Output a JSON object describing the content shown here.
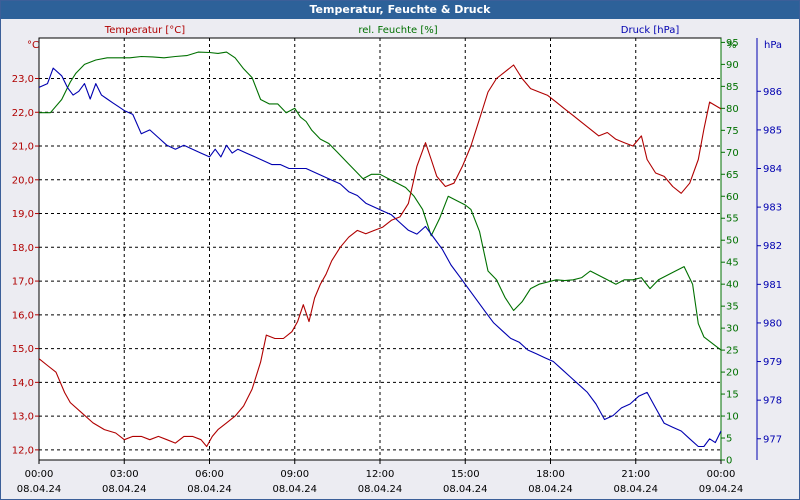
{
  "window": {
    "title": "Temperatur, Feuchte & Druck"
  },
  "chart_data": {
    "type": "line",
    "title": "Temperatur, Feuchte & Druck",
    "grid": true,
    "colors": {
      "temperature": "#b00000",
      "humidity": "#007000",
      "pressure": "#0000b0",
      "grid": "#000000",
      "plot_bg": "#ffffff"
    },
    "x_axis": {
      "range_hours": [
        0,
        24
      ],
      "ticks": [
        {
          "hour": 0,
          "time": "00:00",
          "date": "08.04.24"
        },
        {
          "hour": 3,
          "time": "03:00",
          "date": "08.04.24"
        },
        {
          "hour": 6,
          "time": "06:00",
          "date": "08.04.24"
        },
        {
          "hour": 9,
          "time": "09:00",
          "date": "08.04.24"
        },
        {
          "hour": 12,
          "time": "12:00",
          "date": "08.04.24"
        },
        {
          "hour": 15,
          "time": "15:00",
          "date": "08.04.24"
        },
        {
          "hour": 18,
          "time": "18:00",
          "date": "08.04.24"
        },
        {
          "hour": 21,
          "time": "21:00",
          "date": "08.04.24"
        },
        {
          "hour": 24,
          "time": "00:00",
          "date": "09.04.24"
        }
      ]
    },
    "axes": {
      "temperature": {
        "unit": "°C",
        "range": [
          11.7,
          24.2
        ],
        "ticks": [
          12.0,
          13.0,
          14.0,
          15.0,
          16.0,
          17.0,
          18.0,
          19.0,
          20.0,
          21.0,
          22.0,
          23.0
        ],
        "tick_labels": [
          "12,0",
          "13,0",
          "14,0",
          "15,0",
          "16,0",
          "17,0",
          "18,0",
          "19,0",
          "20,0",
          "21,0",
          "22,0",
          "23,0"
        ]
      },
      "humidity": {
        "unit": "%",
        "range": [
          0,
          96
        ],
        "ticks": [
          0,
          5,
          10,
          15,
          20,
          25,
          30,
          35,
          40,
          45,
          50,
          55,
          60,
          65,
          70,
          75,
          80,
          85,
          90,
          95
        ],
        "tick_labels": [
          "0",
          "5",
          "10",
          "15",
          "20",
          "25",
          "30",
          "35",
          "40",
          "45",
          "50",
          "55",
          "60",
          "65",
          "70",
          "75",
          "80",
          "85",
          "90",
          "95"
        ]
      },
      "pressure": {
        "unit": "hPa",
        "range": [
          976.45,
          987.38
        ],
        "ticks": [
          977,
          978,
          979,
          980,
          981,
          982,
          983,
          984,
          985,
          986
        ],
        "tick_labels": [
          "977",
          "978",
          "979",
          "980",
          "981",
          "982",
          "983",
          "984",
          "985",
          "986"
        ]
      }
    },
    "series": [
      {
        "name": "Temperatur [°C]",
        "axis": "temperature",
        "x": [
          0,
          0.3,
          0.6,
          0.9,
          1.1,
          1.5,
          1.9,
          2.3,
          2.7,
          3.0,
          3.3,
          3.6,
          3.9,
          4.2,
          4.5,
          4.8,
          5.1,
          5.4,
          5.7,
          5.9,
          6.1,
          6.3,
          6.6,
          6.9,
          7.2,
          7.5,
          7.8,
          8.0,
          8.3,
          8.6,
          8.9,
          9.1,
          9.3,
          9.5,
          9.7,
          9.9,
          10.1,
          10.3,
          10.6,
          10.9,
          11.2,
          11.5,
          11.8,
          12.1,
          12.4,
          12.7,
          13.0,
          13.3,
          13.6,
          13.8,
          14.0,
          14.3,
          14.6,
          14.9,
          15.2,
          15.5,
          15.8,
          16.1,
          16.4,
          16.7,
          17.0,
          17.3,
          17.6,
          17.9,
          18.2,
          18.5,
          18.8,
          19.1,
          19.4,
          19.7,
          20.0,
          20.3,
          20.6,
          20.9,
          21.2,
          21.4,
          21.7,
          22.0,
          22.3,
          22.6,
          22.9,
          23.2,
          23.4,
          23.6,
          23.8,
          24.0
        ],
        "values": [
          14.7,
          14.5,
          14.3,
          13.7,
          13.4,
          13.1,
          12.8,
          12.6,
          12.5,
          12.3,
          12.4,
          12.4,
          12.3,
          12.4,
          12.3,
          12.2,
          12.4,
          12.4,
          12.3,
          12.1,
          12.4,
          12.6,
          12.8,
          13.0,
          13.3,
          13.8,
          14.6,
          15.4,
          15.3,
          15.3,
          15.5,
          15.8,
          16.3,
          15.8,
          16.5,
          16.9,
          17.2,
          17.6,
          18.0,
          18.3,
          18.5,
          18.4,
          18.5,
          18.6,
          18.8,
          18.9,
          19.3,
          20.4,
          21.1,
          20.6,
          20.1,
          19.8,
          19.9,
          20.4,
          21.0,
          21.8,
          22.6,
          23.0,
          23.2,
          23.4,
          23.0,
          22.7,
          22.6,
          22.5,
          22.3,
          22.1,
          21.9,
          21.7,
          21.5,
          21.3,
          21.4,
          21.2,
          21.1,
          21.0,
          21.3,
          20.6,
          20.2,
          20.1,
          19.8,
          19.6,
          19.9,
          20.6,
          21.5,
          22.3,
          22.2,
          22.1
        ]
      },
      {
        "name": "rel. Feuchte [%]",
        "axis": "humidity",
        "x": [
          0,
          0.4,
          0.8,
          1.1,
          1.3,
          1.6,
          2.0,
          2.4,
          2.8,
          3.2,
          3.6,
          4.0,
          4.4,
          4.8,
          5.2,
          5.6,
          6.0,
          6.3,
          6.6,
          6.9,
          7.2,
          7.5,
          7.8,
          8.1,
          8.4,
          8.7,
          9.0,
          9.2,
          9.4,
          9.6,
          9.9,
          10.2,
          10.5,
          10.8,
          11.1,
          11.4,
          11.7,
          12.0,
          12.3,
          12.6,
          12.9,
          13.2,
          13.5,
          13.8,
          14.1,
          14.4,
          14.7,
          15.0,
          15.2,
          15.5,
          15.8,
          16.1,
          16.4,
          16.7,
          17.0,
          17.3,
          17.6,
          17.9,
          18.2,
          18.5,
          18.8,
          19.1,
          19.4,
          19.7,
          20.0,
          20.3,
          20.6,
          20.9,
          21.2,
          21.5,
          21.8,
          22.1,
          22.4,
          22.7,
          23.0,
          23.2,
          23.4,
          23.6,
          23.8,
          24.0
        ],
        "values": [
          79,
          79,
          82,
          86,
          88,
          90,
          91,
          91.5,
          91.5,
          91.5,
          91.8,
          91.7,
          91.5,
          91.8,
          92,
          92.8,
          92.7,
          92.5,
          92.8,
          91.5,
          89,
          87,
          82,
          81,
          81,
          79,
          80,
          78,
          77,
          75,
          73,
          72,
          70,
          68,
          66,
          64,
          65,
          65,
          64,
          63,
          62,
          60,
          57,
          51,
          55,
          60,
          59,
          58,
          57,
          52,
          43,
          41,
          37,
          34,
          36,
          39,
          40,
          40.5,
          41,
          40.8,
          41,
          41.5,
          43,
          42,
          41,
          40,
          41,
          41,
          41.5,
          39,
          41,
          42,
          43,
          44,
          40,
          31,
          28,
          27,
          26,
          25
        ]
      },
      {
        "name": "Druck [hPa]",
        "axis": "pressure",
        "x": [
          0,
          0.3,
          0.5,
          0.8,
          1.0,
          1.2,
          1.4,
          1.6,
          1.8,
          2.0,
          2.2,
          2.4,
          2.6,
          2.8,
          3.0,
          3.3,
          3.6,
          3.9,
          4.2,
          4.5,
          4.8,
          5.1,
          5.4,
          5.7,
          6.0,
          6.2,
          6.4,
          6.6,
          6.8,
          7.0,
          7.3,
          7.6,
          7.9,
          8.2,
          8.5,
          8.8,
          9.1,
          9.4,
          9.7,
          10.0,
          10.3,
          10.6,
          10.9,
          11.2,
          11.5,
          11.8,
          12.1,
          12.4,
          12.7,
          13.0,
          13.3,
          13.6,
          13.9,
          14.2,
          14.5,
          14.8,
          15.1,
          15.4,
          15.7,
          16.0,
          16.3,
          16.6,
          16.9,
          17.2,
          17.5,
          17.8,
          18.1,
          18.4,
          18.7,
          19.0,
          19.3,
          19.6,
          19.9,
          20.2,
          20.5,
          20.8,
          21.1,
          21.4,
          21.7,
          22.0,
          22.3,
          22.6,
          22.9,
          23.2,
          23.4,
          23.6,
          23.8,
          24.0
        ],
        "values": [
          986.1,
          986.2,
          986.6,
          986.4,
          986.1,
          985.9,
          986.0,
          986.2,
          985.8,
          986.2,
          985.9,
          985.8,
          985.7,
          985.6,
          985.5,
          985.4,
          984.9,
          985.0,
          984.8,
          984.6,
          984.5,
          984.6,
          984.5,
          984.4,
          984.3,
          984.5,
          984.3,
          984.6,
          984.4,
          984.5,
          984.4,
          984.3,
          984.2,
          984.1,
          984.1,
          984.0,
          984.0,
          984.0,
          983.9,
          983.8,
          983.7,
          983.6,
          983.4,
          983.3,
          983.1,
          983.0,
          982.9,
          982.8,
          982.6,
          982.4,
          982.3,
          982.5,
          982.2,
          981.9,
          981.5,
          981.2,
          980.9,
          980.6,
          980.3,
          980.0,
          979.8,
          979.6,
          979.5,
          979.3,
          979.2,
          979.1,
          979.0,
          978.8,
          978.6,
          978.4,
          978.2,
          977.9,
          977.5,
          977.6,
          977.8,
          977.9,
          978.1,
          978.2,
          977.8,
          977.4,
          977.3,
          977.2,
          977.0,
          976.8,
          976.8,
          977.0,
          976.9,
          977.2
        ]
      }
    ]
  }
}
